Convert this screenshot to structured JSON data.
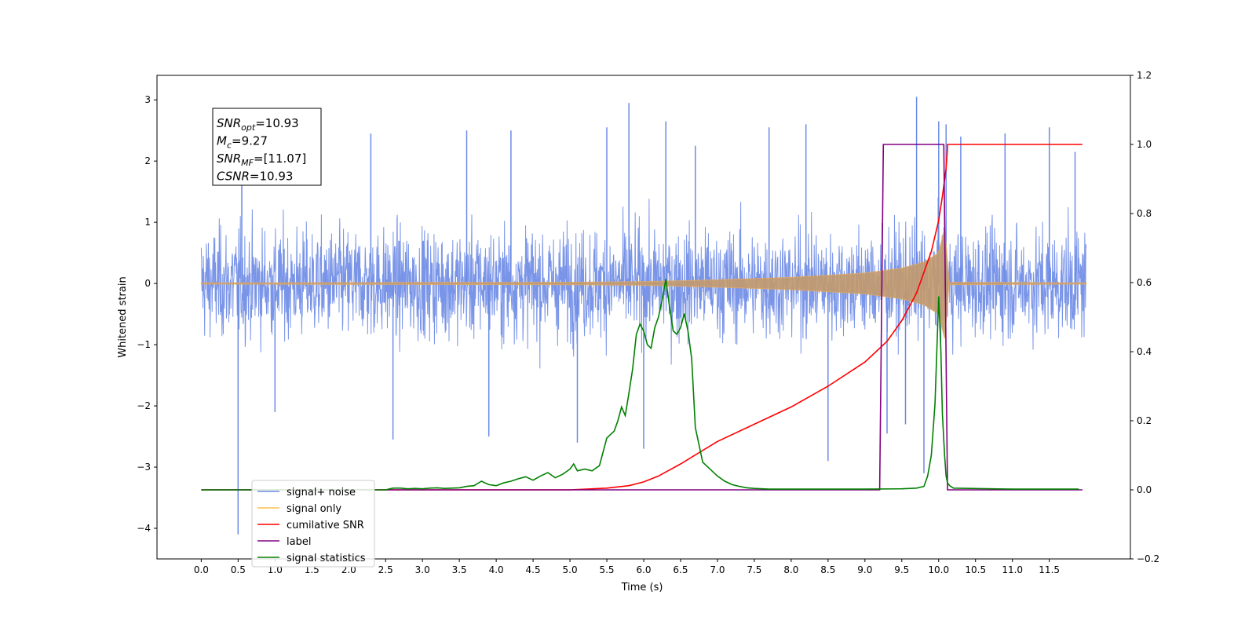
{
  "chart_data": {
    "type": "line",
    "title": "",
    "xlabel": "Time (s)",
    "ylabel": "Whitened strain",
    "y2label": "",
    "xlim": [
      -0.6,
      12.6
    ],
    "ylim": [
      -4.5,
      3.4
    ],
    "y2lim": [
      -0.2,
      1.2
    ],
    "xticks": [
      0.0,
      0.5,
      1.0,
      1.5,
      2.0,
      2.5,
      3.0,
      3.5,
      4.0,
      4.5,
      5.0,
      5.5,
      6.0,
      6.5,
      7.0,
      7.5,
      8.0,
      8.5,
      9.0,
      9.5,
      10.0,
      10.5,
      11.0,
      11.5
    ],
    "xtick_labels": [
      "0.0",
      "0.5",
      "1.0",
      "1.5",
      "2.0",
      "2.5",
      "3.0",
      "3.5",
      "4.0",
      "4.5",
      "5.0",
      "5.5",
      "6.0",
      "6.5",
      "7.0",
      "7.5",
      "8.0",
      "8.5",
      "9.0",
      "9.5",
      "10.0",
      "10.5",
      "11.0",
      "11.5"
    ],
    "yticks": [
      -4,
      -3,
      -2,
      -1,
      0,
      1,
      2,
      3
    ],
    "ytick_labels": [
      "−4",
      "−3",
      "−2",
      "−1",
      "0",
      "1",
      "2",
      "3"
    ],
    "y2ticks": [
      -0.2,
      0.0,
      0.2,
      0.4,
      0.6,
      0.8,
      1.0,
      1.2
    ],
    "y2tick_labels": [
      "−0.2",
      "0.0",
      "0.2",
      "0.4",
      "0.6",
      "0.8",
      "1.0",
      "1.2"
    ],
    "grid": false,
    "legend_position": "lower-left",
    "legend": [
      {
        "label": "signal+ noise",
        "color": "#6b8ae6"
      },
      {
        "label": "signal only",
        "color": "#ffc04d"
      },
      {
        "label": "cumilative SNR",
        "color": "#ff0000"
      },
      {
        "label": "label",
        "color": "#800080"
      },
      {
        "label": "signal statistics",
        "color": "#008000"
      }
    ],
    "annotation_lines": [
      {
        "main": "SNR",
        "sub": "opt",
        "rest": "=10.93"
      },
      {
        "main": "M",
        "sub": "c",
        "rest": "=9.27"
      },
      {
        "main": "SNR",
        "sub": "MF",
        "rest": "=[11.07]"
      },
      {
        "main": "CSNR",
        "sub": "",
        "rest": "=10.93"
      }
    ],
    "series": [
      {
        "name": "signal+ noise",
        "axis": "left",
        "color": "#6b8ae6",
        "t_range": [
          0.0,
          12.0
        ],
        "envelope_top": 1.3,
        "envelope_bottom": -1.3,
        "spikes": [
          [
            0.5,
            -4.1
          ],
          [
            0.55,
            2.3
          ],
          [
            1.0,
            -2.1
          ],
          [
            2.3,
            2.45
          ],
          [
            2.6,
            -2.55
          ],
          [
            3.6,
            2.5
          ],
          [
            3.9,
            -2.5
          ],
          [
            4.2,
            2.5
          ],
          [
            5.1,
            -2.6
          ],
          [
            5.5,
            2.55
          ],
          [
            5.8,
            2.95
          ],
          [
            6.0,
            -2.7
          ],
          [
            6.3,
            2.65
          ],
          [
            6.7,
            2.25
          ],
          [
            7.7,
            2.55
          ],
          [
            8.2,
            2.6
          ],
          [
            8.5,
            -2.9
          ],
          [
            9.3,
            -2.45
          ],
          [
            9.55,
            -2.3
          ],
          [
            9.7,
            3.05
          ],
          [
            9.8,
            -3.1
          ],
          [
            10.0,
            2.65
          ],
          [
            10.1,
            2.6
          ],
          [
            10.3,
            2.4
          ],
          [
            10.9,
            2.45
          ],
          [
            11.5,
            2.55
          ],
          [
            11.85,
            2.15
          ]
        ]
      },
      {
        "name": "signal only",
        "axis": "left",
        "color": "#ffc04d",
        "chirp_envelope": [
          [
            0.0,
            0.01
          ],
          [
            5.0,
            0.02
          ],
          [
            6.0,
            0.03
          ],
          [
            7.0,
            0.06
          ],
          [
            8.0,
            0.1
          ],
          [
            9.0,
            0.17
          ],
          [
            9.5,
            0.25
          ],
          [
            9.8,
            0.35
          ],
          [
            10.0,
            0.5
          ],
          [
            10.05,
            0.75
          ],
          [
            10.1,
            1.0
          ],
          [
            10.12,
            0.02
          ],
          [
            12.0,
            0.01
          ]
        ]
      },
      {
        "name": "cumilative SNR",
        "axis": "right",
        "color": "#ff0000",
        "x": [
          0.0,
          5.0,
          5.5,
          5.8,
          6.0,
          6.2,
          6.5,
          7.0,
          7.5,
          8.0,
          8.5,
          9.0,
          9.3,
          9.5,
          9.7,
          9.9,
          10.0,
          10.05,
          10.1,
          10.12,
          10.12,
          11.0,
          11.5,
          11.95
        ],
        "values": [
          0.0,
          0.0,
          0.005,
          0.012,
          0.023,
          0.04,
          0.075,
          0.14,
          0.19,
          0.24,
          0.3,
          0.37,
          0.43,
          0.49,
          0.57,
          0.69,
          0.78,
          0.85,
          0.93,
          0.99,
          1.0,
          1.0,
          1.0,
          1.0
        ]
      },
      {
        "name": "label",
        "axis": "right",
        "color": "#800080",
        "x": [
          0.0,
          9.2,
          9.25,
          10.07,
          10.12,
          11.95
        ],
        "values": [
          0.0,
          0.0,
          1.0,
          1.0,
          0.0,
          0.0
        ]
      },
      {
        "name": "signal statistics",
        "axis": "right",
        "color": "#008000",
        "x": [
          0.0,
          2.5,
          2.6,
          2.7,
          2.8,
          2.9,
          3.0,
          3.1,
          3.2,
          3.3,
          3.4,
          3.5,
          3.6,
          3.7,
          3.8,
          3.9,
          4.0,
          4.1,
          4.2,
          4.3,
          4.4,
          4.5,
          4.6,
          4.7,
          4.8,
          4.9,
          5.0,
          5.05,
          5.1,
          5.2,
          5.3,
          5.4,
          5.5,
          5.55,
          5.6,
          5.65,
          5.7,
          5.75,
          5.8,
          5.85,
          5.9,
          5.95,
          6.0,
          6.05,
          6.1,
          6.15,
          6.2,
          6.25,
          6.3,
          6.35,
          6.4,
          6.45,
          6.5,
          6.55,
          6.6,
          6.65,
          6.7,
          6.8,
          6.9,
          7.0,
          7.1,
          7.2,
          7.3,
          7.4,
          7.5,
          7.7,
          8.0,
          9.0,
          9.5,
          9.7,
          9.8,
          9.85,
          9.9,
          9.95,
          10.0,
          10.03,
          10.05,
          10.08,
          10.1,
          10.12,
          10.15,
          10.2,
          11.0,
          11.9
        ],
        "values": [
          0.0,
          0.0,
          0.005,
          0.005,
          0.003,
          0.004,
          0.003,
          0.005,
          0.006,
          0.004,
          0.005,
          0.006,
          0.01,
          0.012,
          0.025,
          0.015,
          0.012,
          0.02,
          0.025,
          0.032,
          0.038,
          0.028,
          0.04,
          0.05,
          0.035,
          0.045,
          0.06,
          0.075,
          0.055,
          0.06,
          0.055,
          0.07,
          0.15,
          0.16,
          0.17,
          0.2,
          0.24,
          0.215,
          0.28,
          0.35,
          0.45,
          0.48,
          0.46,
          0.42,
          0.41,
          0.47,
          0.5,
          0.55,
          0.61,
          0.53,
          0.46,
          0.45,
          0.47,
          0.51,
          0.46,
          0.38,
          0.18,
          0.08,
          0.06,
          0.04,
          0.025,
          0.015,
          0.01,
          0.006,
          0.004,
          0.002,
          0.002,
          0.002,
          0.003,
          0.005,
          0.01,
          0.04,
          0.1,
          0.25,
          0.56,
          0.4,
          0.22,
          0.1,
          0.04,
          0.02,
          0.012,
          0.005,
          0.002,
          0.002
        ]
      }
    ]
  }
}
